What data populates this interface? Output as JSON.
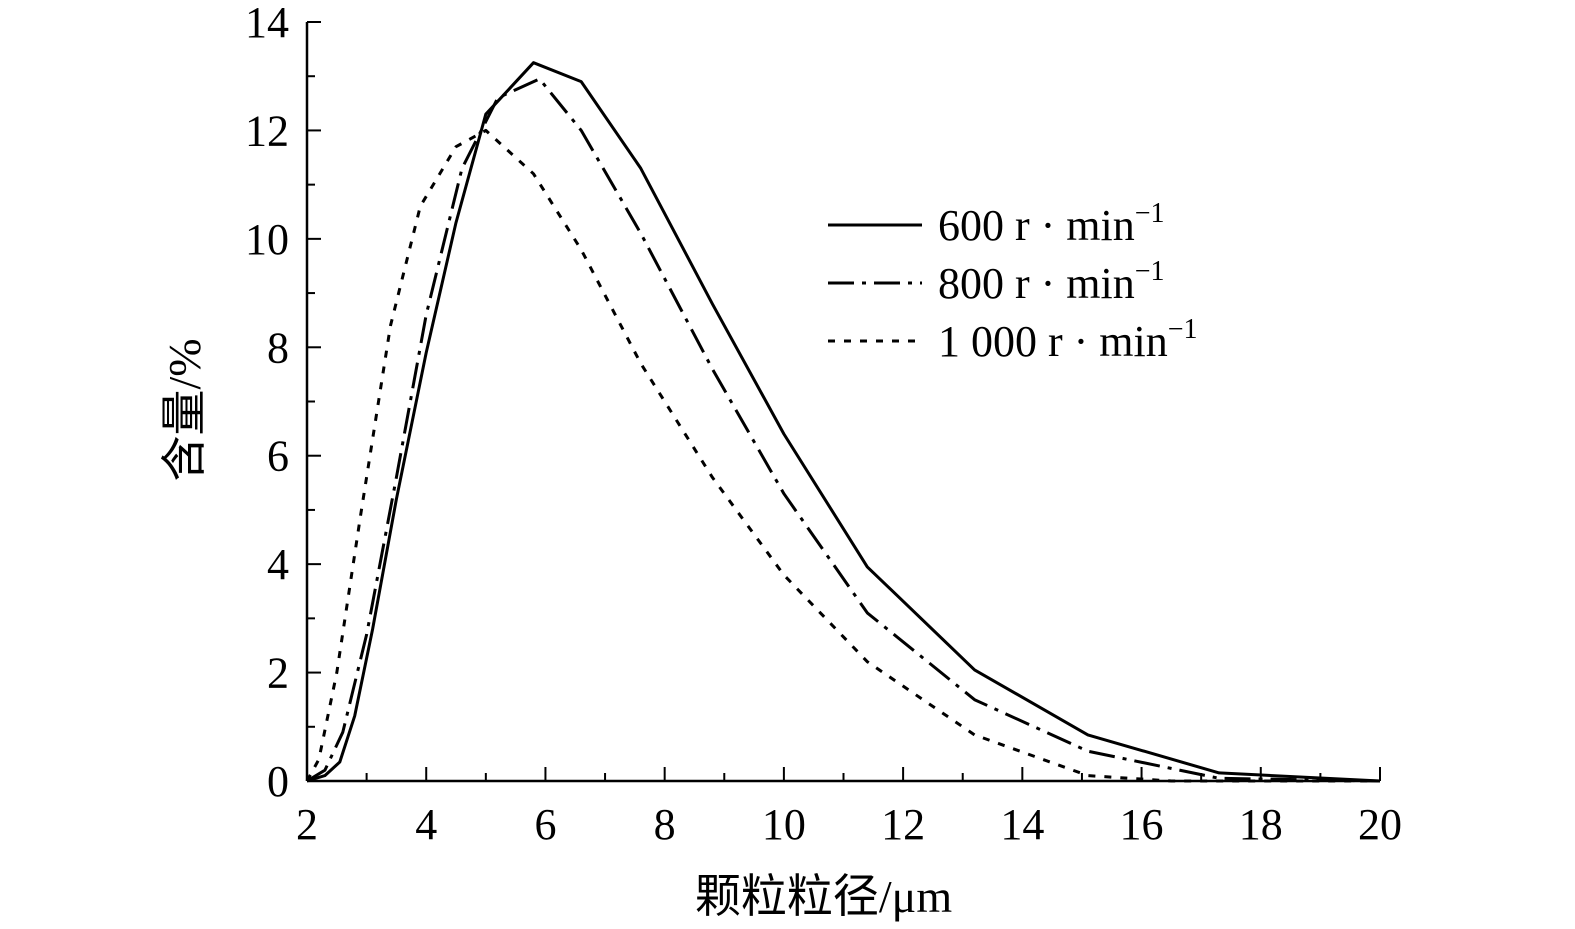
{
  "chart_data": {
    "type": "line",
    "xlabel": "颗粒粒径/μm",
    "ylabel": "含量/%",
    "xlim": [
      2,
      20
    ],
    "ylim": [
      0,
      14
    ],
    "x_ticks": [
      "2",
      "4",
      "6",
      "8",
      "10",
      "12",
      "14",
      "16",
      "18",
      "20"
    ],
    "y_ticks": [
      "0",
      "2",
      "4",
      "6",
      "8",
      "10",
      "12",
      "14"
    ],
    "grid": false,
    "legend_position": "upper-right",
    "series": [
      {
        "name": "600 r·min",
        "name_base": "600 r · min",
        "name_sup": "−1",
        "style": "solid",
        "color": "#000000",
        "x": [
          2.0,
          2.3,
          2.55,
          2.8,
          3.1,
          3.5,
          4.0,
          4.5,
          5.0,
          5.8,
          6.6,
          7.6,
          8.8,
          10.0,
          11.4,
          13.2,
          15.1,
          17.3,
          20.0
        ],
        "y": [
          0.0,
          0.1,
          0.35,
          1.2,
          2.8,
          5.2,
          7.9,
          10.3,
          12.3,
          13.25,
          12.9,
          11.3,
          8.8,
          6.4,
          3.95,
          2.05,
          0.85,
          0.15,
          0.0
        ]
      },
      {
        "name": "800 r·min",
        "name_base": "800 r · min",
        "name_sup": "−1",
        "style": "dashdot",
        "color": "#000000",
        "x": [
          2.0,
          2.3,
          2.6,
          3.0,
          3.5,
          4.0,
          4.6,
          5.2,
          5.9,
          6.6,
          7.6,
          8.8,
          10.0,
          11.4,
          13.2,
          15.1,
          17.3,
          20.0
        ],
        "y": [
          0.0,
          0.2,
          0.9,
          2.7,
          5.6,
          8.6,
          11.3,
          12.6,
          12.95,
          12.0,
          10.1,
          7.6,
          5.3,
          3.1,
          1.5,
          0.55,
          0.05,
          0.0
        ]
      },
      {
        "name": "1 000 r·min",
        "name_base": "1 000 r · min",
        "name_sup": "−1",
        "style": "dotted",
        "color": "#000000",
        "x": [
          2.0,
          2.2,
          2.5,
          2.9,
          3.4,
          3.9,
          4.5,
          5.0,
          5.8,
          6.6,
          7.6,
          8.8,
          10.0,
          11.4,
          13.2,
          15.1,
          16.5,
          17.3,
          20.0
        ],
        "y": [
          0.0,
          0.4,
          2.0,
          4.9,
          8.4,
          10.6,
          11.7,
          12.0,
          11.2,
          9.8,
          7.7,
          5.6,
          3.8,
          2.2,
          0.85,
          0.1,
          0.0,
          0.0,
          0.0
        ]
      }
    ]
  }
}
